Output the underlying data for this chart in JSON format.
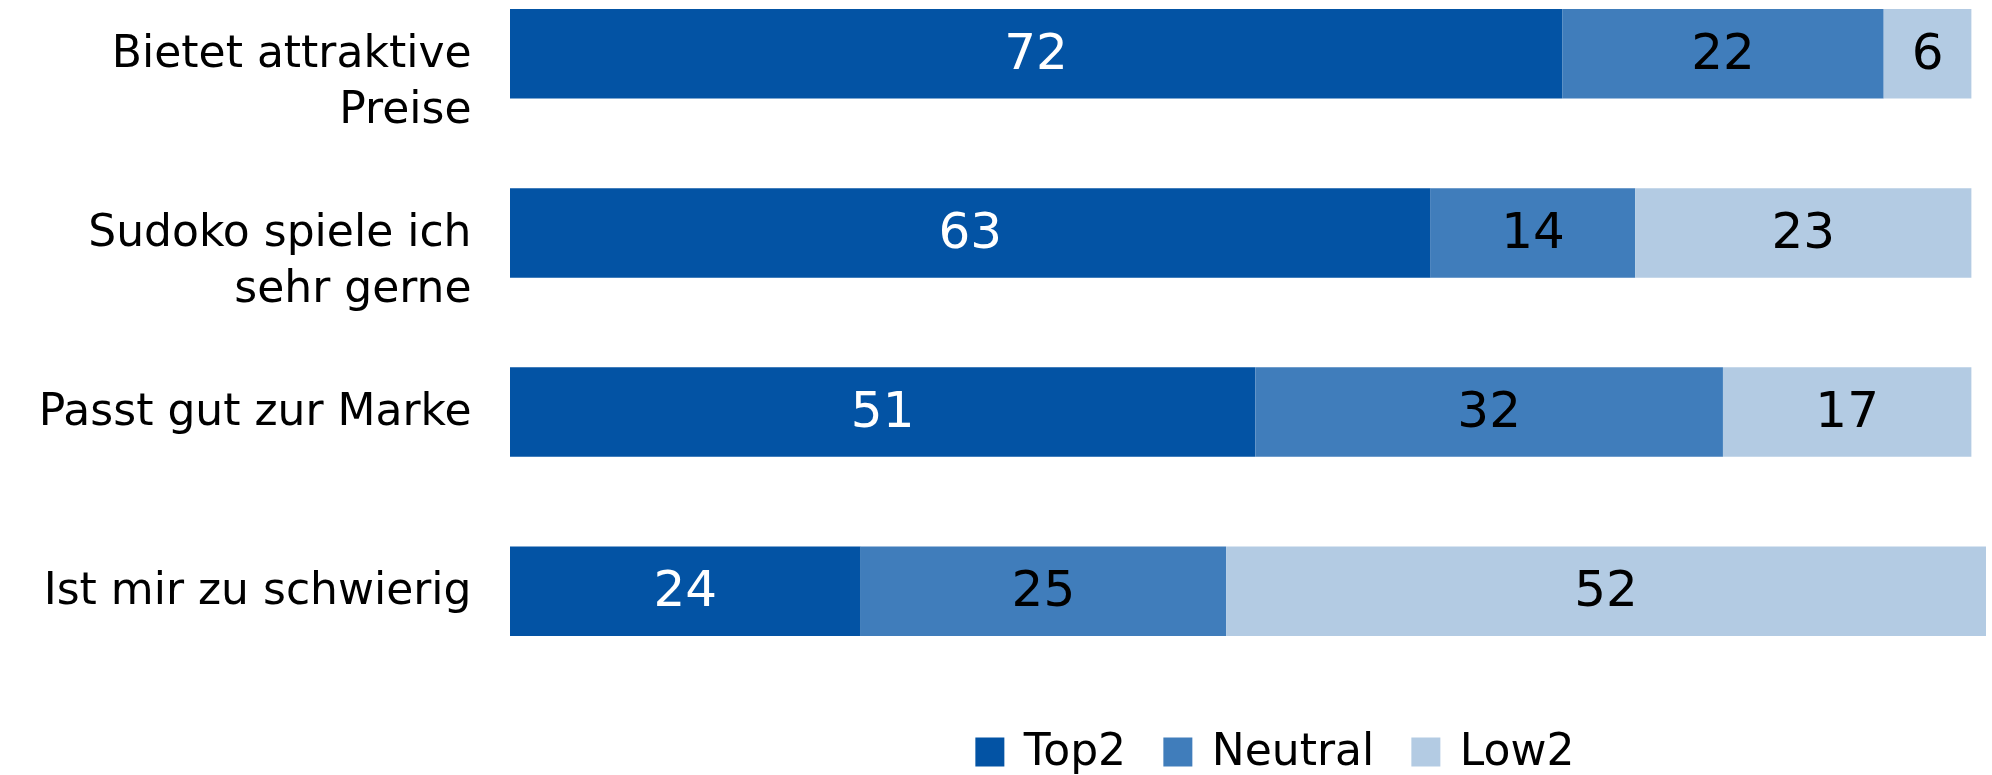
{
  "chart_data": {
    "type": "bar",
    "orientation": "horizontal",
    "stacked": true,
    "categories": [
      "Bietet attraktive Preise",
      "Sudoko spiele ich sehr gerne",
      "Passt gut zur Marke",
      "Ist mir zu schwierig"
    ],
    "series": [
      {
        "name": "Top2",
        "color": "#0353a4",
        "values": [
          72,
          63,
          51,
          24
        ]
      },
      {
        "name": "Neutral",
        "color": "#407dbb",
        "values": [
          22,
          14,
          32,
          25
        ]
      },
      {
        "name": "Low2",
        "color": "#b3cbe3",
        "values": [
          6,
          23,
          17,
          52
        ]
      }
    ],
    "data_labels": true,
    "legend": "bottom",
    "tick_labels": "y"
  }
}
